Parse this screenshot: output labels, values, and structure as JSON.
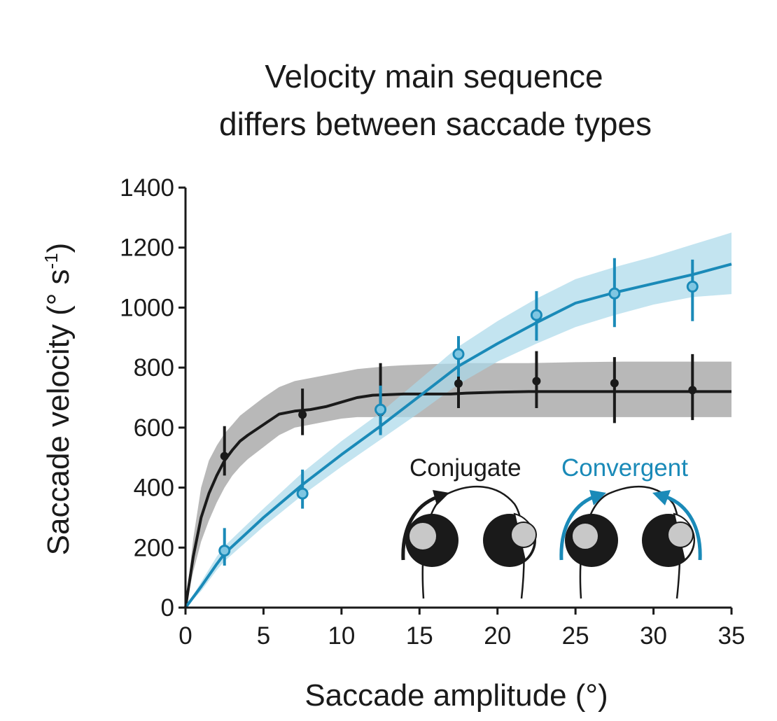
{
  "chart_data": {
    "type": "line",
    "title": "Velocity main sequence differs between saccade types",
    "title_lines": [
      "Velocity main sequence",
      "differs between saccade types"
    ],
    "xlabel": "Saccade amplitude (°)",
    "ylabel_main": "Saccade velocity (° s",
    "ylabel_sup": "-1",
    "ylabel_close": ")",
    "xlim": [
      0,
      35
    ],
    "ylim": [
      0,
      1400
    ],
    "xticks": [
      "0",
      "5",
      "10",
      "15",
      "20",
      "25",
      "30",
      "35"
    ],
    "yticks": [
      "0",
      "200",
      "400",
      "600",
      "800",
      "1000",
      "1200",
      "1400"
    ],
    "grid": false,
    "legend_position": "lower-right",
    "series": [
      {
        "name": "Conjugate",
        "color": "#1a1a1a",
        "band_color": "#9a9a9a",
        "curve": {
          "x": [
            0,
            0.5,
            1,
            1.5,
            2,
            2.5,
            3,
            3.5,
            4,
            5,
            6,
            7,
            8,
            9,
            10,
            11,
            12,
            13,
            14,
            15,
            16,
            17,
            18,
            20,
            22,
            25,
            28,
            30,
            32,
            35
          ],
          "y": [
            0,
            170,
            300,
            380,
            440,
            490,
            525,
            555,
            575,
            610,
            645,
            655,
            660,
            670,
            685,
            700,
            708,
            710,
            712,
            712,
            712,
            712,
            715,
            718,
            720,
            720,
            720,
            720,
            720,
            720
          ],
          "lower": [
            0,
            120,
            220,
            290,
            350,
            400,
            440,
            470,
            495,
            535,
            575,
            600,
            610,
            620,
            630,
            635,
            635,
            635,
            635,
            635,
            635,
            635,
            635,
            635,
            635,
            635,
            635,
            635,
            635,
            635
          ],
          "upper": [
            0,
            230,
            400,
            490,
            540,
            580,
            610,
            640,
            660,
            700,
            735,
            755,
            765,
            775,
            785,
            795,
            800,
            805,
            808,
            810,
            812,
            813,
            815,
            815,
            815,
            818,
            820,
            820,
            820,
            820
          ]
        },
        "points": {
          "x": [
            2.5,
            7.5,
            12.5,
            17.5,
            22.5,
            27.5,
            32.5
          ],
          "y": [
            505,
            643,
            652,
            747,
            755,
            748,
            725
          ],
          "err_low": [
            440,
            575,
            580,
            665,
            665,
            615,
            625
          ],
          "err_high": [
            605,
            730,
            815,
            835,
            855,
            835,
            845
          ]
        }
      },
      {
        "name": "Convergent",
        "color": "#1a8ab8",
        "band_color": "#a9d8ea",
        "curve": {
          "x": [
            0,
            1,
            2,
            2.5,
            5,
            7.5,
            10,
            12.5,
            15,
            17.5,
            20,
            22.5,
            25,
            27.5,
            30,
            32.5,
            35
          ],
          "y": [
            0,
            70,
            145,
            180,
            300,
            410,
            510,
            605,
            705,
            805,
            880,
            950,
            1015,
            1050,
            1080,
            1110,
            1145
          ],
          "lower": [
            0,
            55,
            125,
            155,
            270,
            375,
            470,
            560,
            650,
            745,
            820,
            880,
            935,
            975,
            1010,
            1035,
            1045
          ],
          "upper": [
            0,
            85,
            170,
            205,
            330,
            450,
            555,
            650,
            760,
            870,
            955,
            1030,
            1095,
            1135,
            1170,
            1210,
            1250
          ]
        },
        "points": {
          "x": [
            2.5,
            7.5,
            12.5,
            17.5,
            22.5,
            27.5,
            32.5
          ],
          "y": [
            190,
            380,
            660,
            845,
            975,
            1047,
            1070
          ],
          "err_low": [
            140,
            330,
            575,
            770,
            890,
            935,
            955
          ],
          "err_high": [
            265,
            460,
            740,
            905,
            1055,
            1165,
            1160
          ]
        }
      }
    ]
  },
  "legend": {
    "conjugate_label": "Conjugate",
    "convergent_label": "Convergent",
    "conjugate_color": "#1a1a1a",
    "convergent_color": "#1a8ab8",
    "eye_fill": "#1a1a1a",
    "pupil_fill": "#c8c8c8",
    "icons": [
      "conjugate-eyes-icon",
      "convergent-eyes-icon"
    ]
  }
}
